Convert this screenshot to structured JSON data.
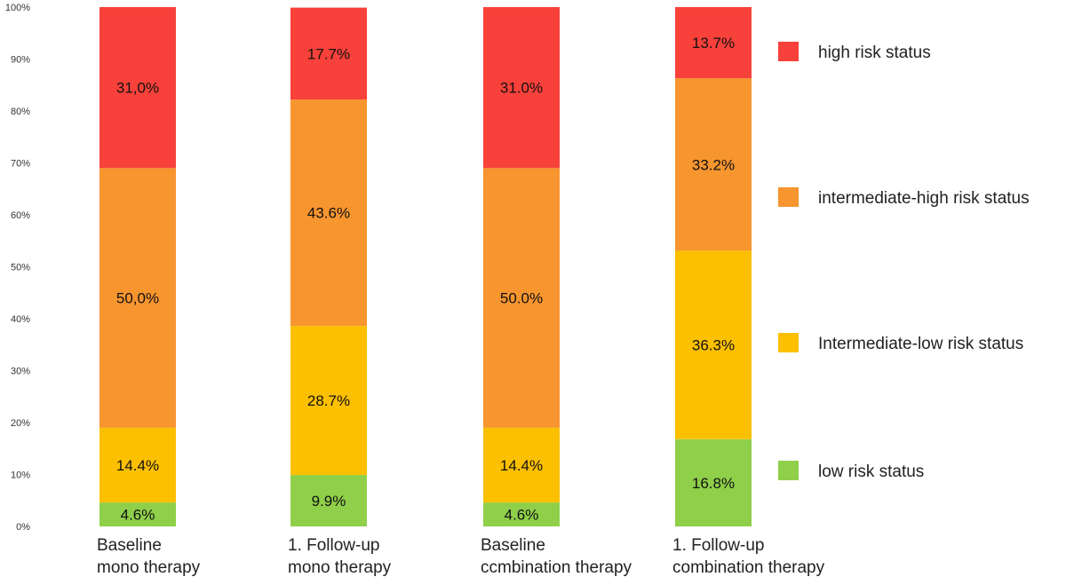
{
  "chart_data": {
    "type": "bar",
    "stacked": true,
    "categories": [
      [
        "Baseline",
        "mono therapy"
      ],
      [
        "1. Follow-up",
        "mono therapy"
      ],
      [
        "Baseline",
        "ccmbination therapy"
      ],
      [
        "1. Follow-up",
        "combination therapy"
      ]
    ],
    "ylim": [
      0,
      100
    ],
    "y_ticks": [
      "0%",
      "10%",
      "20%",
      "30%",
      "40%",
      "50%",
      "60%",
      "70%",
      "80%",
      "90%",
      "100%"
    ],
    "grid": false,
    "legend_position": "right",
    "series": [
      {
        "name": "low risk status",
        "color": "#8fcf4a",
        "values": [
          4.6,
          9.9,
          4.6,
          16.8
        ],
        "labels": [
          "4.6%",
          "9.9%",
          "4.6%",
          "16.8%"
        ]
      },
      {
        "name": "Intermediate-low risk status",
        "color": "#fcc000",
        "values": [
          14.4,
          28.7,
          14.4,
          36.3
        ],
        "labels": [
          "14.4%",
          "28.7%",
          "14.4%",
          "36.3%"
        ]
      },
      {
        "name": "intermediate-high risk status",
        "color": "#f7952f",
        "values": [
          50.0,
          43.6,
          50.0,
          33.2
        ],
        "labels": [
          "50,0%",
          "43.6%",
          "50.0%",
          "33.2%"
        ]
      },
      {
        "name": "high risk status",
        "color": "#f7413a",
        "values": [
          31.0,
          17.7,
          31.0,
          13.7
        ],
        "labels": [
          "31,0%",
          "17.7%",
          "31.0%",
          "13.7%"
        ]
      }
    ],
    "legend_order": [
      3,
      2,
      1,
      0
    ]
  }
}
